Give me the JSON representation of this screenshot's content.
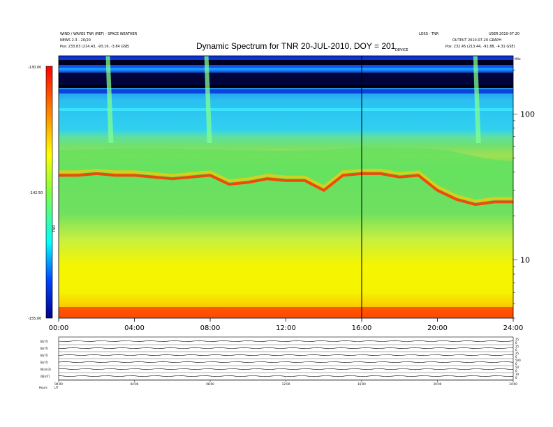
{
  "header": {
    "left_line1": "WIND / WAVES TNR (REF) - SPACE WEATHER",
    "left_line2": "NEWS 2.3 - 20/20",
    "left_pos_prefix": "Pos:",
    "left_pos_value": "233.83 (214.43, -93.16, -3.84 GSE)",
    "right_line1": "LOSS - TNR",
    "right_line2": "USER 2010-07-20",
    "right_line3": "OUTPUT 2010-07-20 GRAPH",
    "right_pos_prefix": "Pos:",
    "right_pos_value": "232.45 (213.44, -91.88, -4.31 GSE)",
    "sub_label": "DEVICE"
  },
  "colorbar": {
    "label": "TNR",
    "ticks": [
      "-130.00",
      "-142.50",
      "-155.00"
    ]
  },
  "colors": {
    "colorbar_top": "#ff0000",
    "colorbar_mid": "#ffff00",
    "colorbar_low": "#00ffff",
    "colorbar_bottom": "#00008b",
    "background_cyan": "#33ccee",
    "band_green": "#66e060",
    "band_red": "#ff3a00",
    "low_yellow": "#f5f500",
    "dark_band": "#000022"
  },
  "chart_data": {
    "type": "heatmap",
    "title": "Dynamic Spectrum for TNR 20-JUL-2010, DOY = 201",
    "xlabel": "",
    "ylabel": "",
    "x_ticks": [
      "00:00",
      "04:00",
      "08:00",
      "12:00",
      "16:00",
      "20:00",
      "24:00"
    ],
    "xlim": [
      "00:00",
      "24:00"
    ],
    "y_scale": "log",
    "y_ticks": [
      100,
      10
    ],
    "ylim": [
      4,
      250
    ],
    "y_top_label": "MHz",
    "value_range": [
      -155.0,
      -130.0
    ],
    "marker_time": "16:00",
    "band_profile_khz": {
      "hours": [
        0,
        1,
        2,
        3,
        4,
        5,
        6,
        7,
        8,
        9,
        10,
        11,
        12,
        13,
        14,
        15,
        16,
        17,
        18,
        19,
        20,
        21,
        22,
        23,
        24
      ],
      "red_band": [
        38,
        38,
        39,
        38,
        38,
        37,
        36,
        37,
        38,
        33,
        34,
        36,
        35,
        35,
        30,
        38,
        39,
        39,
        37,
        38,
        30,
        26,
        24,
        25,
        25
      ]
    },
    "type3_bursts_hours": [
      2.6,
      7.8,
      22.0
    ]
  },
  "lower_panel": {
    "row_labels": [
      "B(nT)",
      "B(nT)",
      "B(nT)",
      "B(nT)",
      "N(cm3)",
      "|B|(nT)"
    ],
    "right_labels": [
      "25",
      "0",
      "25",
      "0",
      "25",
      "0",
      "500",
      "0",
      "50",
      "0",
      "10",
      "0"
    ],
    "x_ticks": [
      "00:00",
      "04:00",
      "08:00",
      "12:00",
      "16:00",
      "20:00",
      "24:00"
    ],
    "footer_left": "Hours",
    "footer_small": "UT"
  }
}
